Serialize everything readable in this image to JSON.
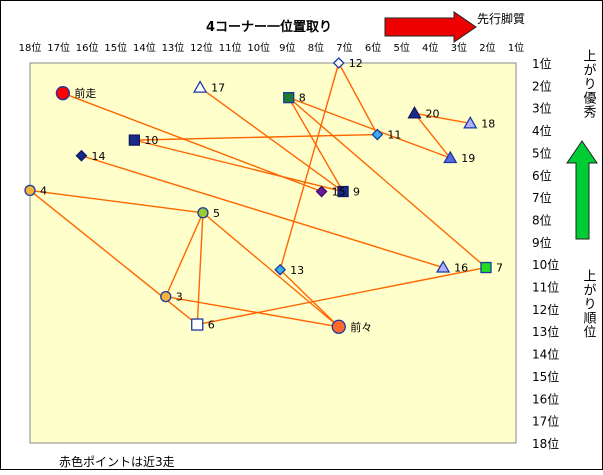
{
  "chart_data": {
    "type": "scatter",
    "title": "4コーナー一位置取り",
    "footnote": "赤色ポイントは近3走",
    "x_tick_labels": [
      "18位",
      "17位",
      "16位",
      "15位",
      "14位",
      "13位",
      "12位",
      "11位",
      "10位",
      "9位",
      "8位",
      "7位",
      "6位",
      "5位",
      "4位",
      "3位",
      "2位",
      "1位"
    ],
    "y_tick_labels": [
      "1位",
      "2位",
      "3位",
      "4位",
      "5位",
      "6位",
      "7位",
      "8位",
      "9位",
      "10位",
      "11位",
      "12位",
      "13位",
      "14位",
      "15位",
      "16位",
      "17位",
      "18位"
    ],
    "xlim": [
      18,
      1
    ],
    "ylim": [
      1,
      18
    ],
    "x_arrow_label": "先行脚質",
    "y_arrow_label_top": "上がり優秀",
    "y_arrow_label_bottom": "上がり順位",
    "colors": {
      "plot_bg": "#ffffcc",
      "line": "#ff6600",
      "up_arrow": "#00cc33",
      "right_arrow": "#ee0000"
    },
    "points": [
      {
        "label": "前走",
        "x": 16.85,
        "y": 2.35,
        "marker": "circle-red"
      },
      {
        "label": "前々",
        "x": 7.2,
        "y": 12.8,
        "marker": "circle-orange"
      },
      {
        "label": "3",
        "x": 13.25,
        "y": 11.45,
        "marker": "circle-gold"
      },
      {
        "label": "4",
        "x": 18.0,
        "y": 6.7,
        "marker": "circle-gold"
      },
      {
        "label": "5",
        "x": 11.95,
        "y": 7.7,
        "marker": "circle-green"
      },
      {
        "label": "6",
        "x": 12.15,
        "y": 12.7,
        "marker": "square-white"
      },
      {
        "label": "7",
        "x": 2.05,
        "y": 10.15,
        "marker": "square-green"
      },
      {
        "label": "8",
        "x": 8.95,
        "y": 2.55,
        "marker": "square-green-dark"
      },
      {
        "label": "9",
        "x": 7.05,
        "y": 6.75,
        "marker": "square-navy"
      },
      {
        "label": "10",
        "x": 14.35,
        "y": 4.45,
        "marker": "square-navy"
      },
      {
        "label": "11",
        "x": 5.85,
        "y": 4.2,
        "marker": "diamond-blue"
      },
      {
        "label": "12",
        "x": 7.2,
        "y": 1.0,
        "marker": "diamond-white"
      },
      {
        "label": "13",
        "x": 9.25,
        "y": 10.25,
        "marker": "diamond-blue"
      },
      {
        "label": "14",
        "x": 16.2,
        "y": 5.15,
        "marker": "diamond-navy"
      },
      {
        "label": "15",
        "x": 7.8,
        "y": 6.75,
        "marker": "diamond-purple"
      },
      {
        "label": "16",
        "x": 3.55,
        "y": 10.15,
        "marker": "triangle-lavender"
      },
      {
        "label": "17",
        "x": 12.05,
        "y": 2.1,
        "marker": "triangle-white"
      },
      {
        "label": "18",
        "x": 2.6,
        "y": 3.7,
        "marker": "triangle-lavender"
      },
      {
        "label": "19",
        "x": 3.3,
        "y": 5.25,
        "marker": "triangle-blue"
      },
      {
        "label": "20",
        "x": 4.55,
        "y": 3.25,
        "marker": "triangle-navy"
      }
    ],
    "connections": [
      [
        "前走",
        "15"
      ],
      [
        "前々",
        "13"
      ],
      [
        "前々",
        "5"
      ],
      [
        "3",
        "前々"
      ],
      [
        "3",
        "5"
      ],
      [
        "4",
        "6"
      ],
      [
        "4",
        "5"
      ],
      [
        "5",
        "6"
      ],
      [
        "6",
        "7"
      ],
      [
        "8",
        "7"
      ],
      [
        "8",
        "9"
      ],
      [
        "8",
        "19"
      ],
      [
        "10",
        "9"
      ],
      [
        "10",
        "11"
      ],
      [
        "11",
        "12"
      ],
      [
        "12",
        "13"
      ],
      [
        "14",
        "16"
      ],
      [
        "17",
        "9"
      ],
      [
        "18",
        "20"
      ],
      [
        "19",
        "20"
      ]
    ]
  }
}
